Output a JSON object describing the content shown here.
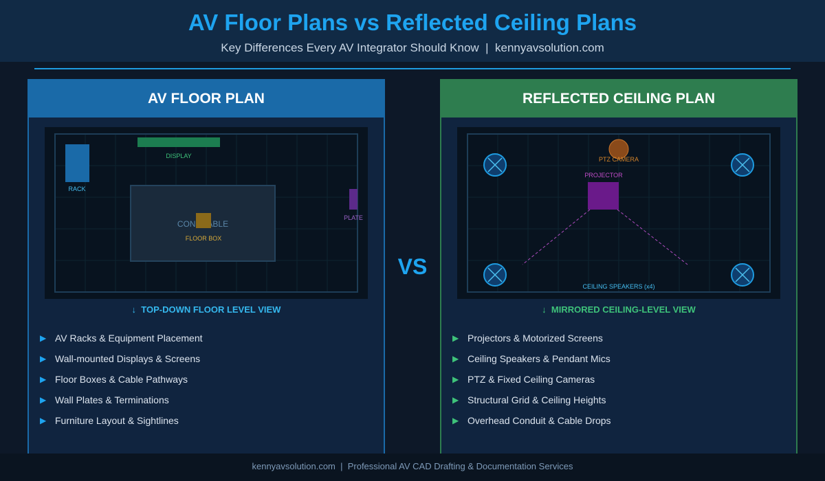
{
  "header": {
    "title": "AV Floor Plans vs Reflected Ceiling Plans",
    "subtitle": "Key Differences Every AV Integrator Should Know  |  kennyavsolution.com"
  },
  "vs_label": "VS",
  "floor_plan": {
    "title": "AV FLOOR PLAN",
    "labels": {
      "display": "DISPLAY",
      "rack": "RACK",
      "table": "CONF TABLE",
      "floor_box": "FLOOR BOX",
      "plate": "PLATE"
    },
    "view_label": "↓  TOP-DOWN FLOOR LEVEL VIEW",
    "items": [
      "AV Racks & Equipment Placement",
      "Wall-mounted Displays & Screens",
      "Floor Boxes & Cable Pathways",
      "Wall Plates & Terminations",
      "Furniture Layout & Sightlines"
    ]
  },
  "ceiling_plan": {
    "title": "REFLECTED CEILING PLAN",
    "labels": {
      "camera": "PTZ CAMERA",
      "projector": "PROJECTOR",
      "speakers": "CEILING SPEAKERS (x4)"
    },
    "view_label": "↓  MIRRORED CEILING-LEVEL VIEW",
    "items": [
      "Projectors & Motorized Screens",
      "Ceiling Speakers & Pendant Mics",
      "PTZ & Fixed Ceiling Cameras",
      "Structural Grid & Ceiling Heights",
      "Overhead Conduit & Cable Drops"
    ]
  },
  "footer": "kennyavsolution.com  |  Professional AV CAD Drafting & Documentation Services",
  "colors": {
    "accent": "#1ea4f0",
    "floor": "#1a6aa8",
    "ceiling": "#2e7d4f"
  }
}
